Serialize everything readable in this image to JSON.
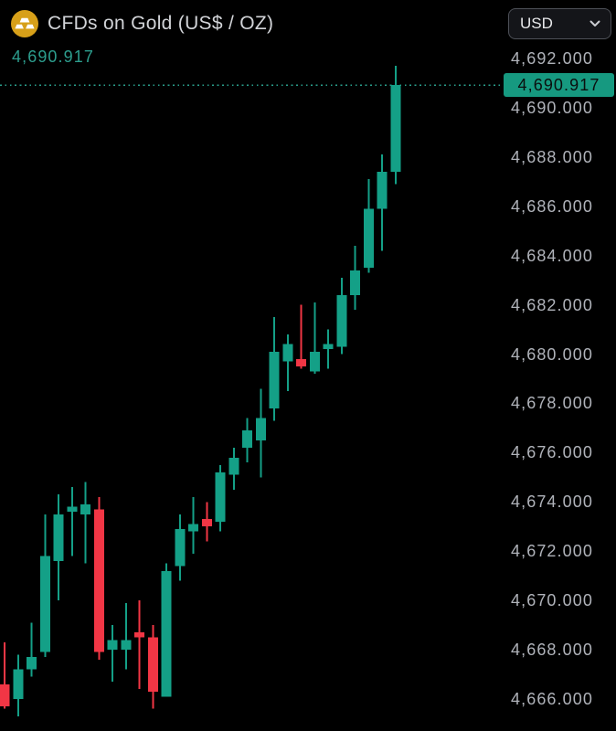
{
  "header": {
    "title": "CFDs on Gold (US$ / OZ)",
    "icon": "gold-bars-icon",
    "currency_selector": {
      "value": "USD"
    }
  },
  "price": {
    "current": "4,690.917"
  },
  "colors": {
    "background": "#000000",
    "up": "#14a087",
    "down": "#f23645",
    "price_line": "#2a9e8c",
    "price_text": "#2d9e8e",
    "badge_bg": "#169980",
    "badge_text": "#0b0e0e",
    "axis_text": "#b0b3ba",
    "title_text": "#d2d4d8",
    "icon_gold": "#d7a019",
    "icon_bars": "#ffffff"
  },
  "chart_data": {
    "type": "candlestick",
    "title": "CFDs on Gold (US$ / OZ)",
    "symbol": "CFDs on Gold",
    "unit": "US$ / OZ",
    "currency": "USD",
    "last_price": 4690.917,
    "last_price_label": "4,690.917",
    "y_axis": {
      "side": "right",
      "grid": false,
      "ticks": [
        {
          "label": "4,692.000",
          "value": 4692
        },
        {
          "label": "4,690.000",
          "value": 4690
        },
        {
          "label": "4,688.000",
          "value": 4688
        },
        {
          "label": "4,686.000",
          "value": 4686
        },
        {
          "label": "4,684.000",
          "value": 4684
        },
        {
          "label": "4,682.000",
          "value": 4682
        },
        {
          "label": "4,680.000",
          "value": 4680
        },
        {
          "label": "4,678.000",
          "value": 4678
        },
        {
          "label": "4,676.000",
          "value": 4676
        },
        {
          "label": "4,674.000",
          "value": 4674
        },
        {
          "label": "4,672.000",
          "value": 4672
        },
        {
          "label": "4,670.000",
          "value": 4670
        },
        {
          "label": "4,668.000",
          "value": 4668
        },
        {
          "label": "4,666.000",
          "value": 4666
        }
      ]
    },
    "candles": [
      {
        "o": 4666.6,
        "h": 4668.3,
        "l": 4665.6,
        "c": 4665.7
      },
      {
        "o": 4666.0,
        "h": 4667.8,
        "l": 4665.3,
        "c": 4667.2
      },
      {
        "o": 4667.2,
        "h": 4669.1,
        "l": 4666.9,
        "c": 4667.7
      },
      {
        "o": 4667.9,
        "h": 4673.5,
        "l": 4667.7,
        "c": 4671.8
      },
      {
        "o": 4671.6,
        "h": 4674.3,
        "l": 4670.0,
        "c": 4673.5
      },
      {
        "o": 4673.6,
        "h": 4674.6,
        "l": 4671.8,
        "c": 4673.8
      },
      {
        "o": 4673.5,
        "h": 4674.8,
        "l": 4671.5,
        "c": 4673.9
      },
      {
        "o": 4673.7,
        "h": 4674.2,
        "l": 4667.6,
        "c": 4667.9
      },
      {
        "o": 4668.0,
        "h": 4669.0,
        "l": 4666.7,
        "c": 4668.4
      },
      {
        "o": 4668.0,
        "h": 4669.9,
        "l": 4667.2,
        "c": 4668.4
      },
      {
        "o": 4668.7,
        "h": 4670.0,
        "l": 4666.4,
        "c": 4668.5
      },
      {
        "o": 4668.5,
        "h": 4669.0,
        "l": 4665.6,
        "c": 4666.3
      },
      {
        "o": 4666.1,
        "h": 4671.5,
        "l": 4666.1,
        "c": 4671.2
      },
      {
        "o": 4671.4,
        "h": 4673.5,
        "l": 4670.8,
        "c": 4672.9
      },
      {
        "o": 4672.8,
        "h": 4674.2,
        "l": 4671.9,
        "c": 4673.1
      },
      {
        "o": 4673.3,
        "h": 4674.0,
        "l": 4672.4,
        "c": 4673.0
      },
      {
        "o": 4673.2,
        "h": 4675.5,
        "l": 4672.8,
        "c": 4675.2
      },
      {
        "o": 4675.1,
        "h": 4676.2,
        "l": 4674.5,
        "c": 4675.8
      },
      {
        "o": 4676.2,
        "h": 4677.4,
        "l": 4675.6,
        "c": 4676.9
      },
      {
        "o": 4676.5,
        "h": 4678.6,
        "l": 4675.0,
        "c": 4677.4
      },
      {
        "o": 4677.8,
        "h": 4681.5,
        "l": 4677.3,
        "c": 4680.1
      },
      {
        "o": 4679.7,
        "h": 4680.8,
        "l": 4678.5,
        "c": 4680.4
      },
      {
        "o": 4679.8,
        "h": 4682.0,
        "l": 4679.4,
        "c": 4679.5
      },
      {
        "o": 4679.3,
        "h": 4682.1,
        "l": 4679.2,
        "c": 4680.1
      },
      {
        "o": 4680.2,
        "h": 4681.0,
        "l": 4679.4,
        "c": 4680.4
      },
      {
        "o": 4680.3,
        "h": 4683.1,
        "l": 4680.0,
        "c": 4682.4
      },
      {
        "o": 4682.4,
        "h": 4684.4,
        "l": 4681.8,
        "c": 4683.4
      },
      {
        "o": 4683.5,
        "h": 4687.1,
        "l": 4683.3,
        "c": 4685.9
      },
      {
        "o": 4685.9,
        "h": 4688.1,
        "l": 4684.2,
        "c": 4687.4
      },
      {
        "o": 4687.4,
        "h": 4691.7,
        "l": 4686.9,
        "c": 4690.917
      }
    ]
  }
}
